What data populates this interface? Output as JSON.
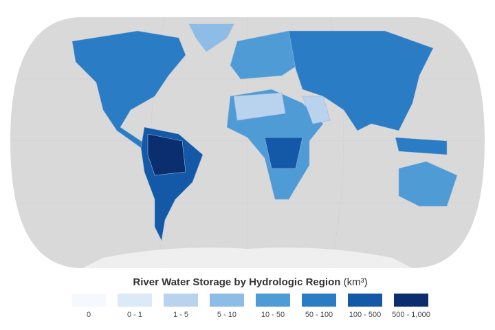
{
  "map": {
    "title": "River Water Storage by Hydrologic Region",
    "unit": "(km³)"
  },
  "legend": {
    "items": [
      {
        "label": "0",
        "color": "#f5f9fd"
      },
      {
        "label": "0 - 1",
        "color": "#dce9f6"
      },
      {
        "label": "1 - 5",
        "color": "#b9d3ee"
      },
      {
        "label": "5 - 10",
        "color": "#8dbde6"
      },
      {
        "label": "10 - 50",
        "color": "#4f9bd6"
      },
      {
        "label": "50 - 100",
        "color": "#2a7cc4"
      },
      {
        "label": "100 - 500",
        "color": "#1459a8"
      },
      {
        "label": "500 - 1,000",
        "color": "#0a2e6e"
      }
    ]
  }
}
